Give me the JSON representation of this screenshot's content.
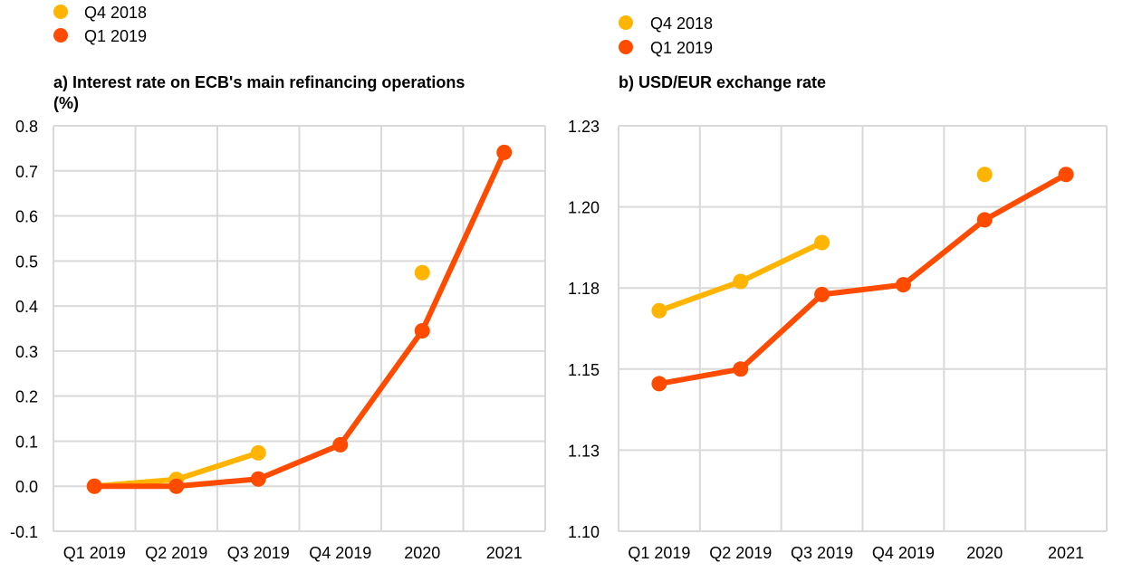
{
  "colors": {
    "series_q4_2018": "#FFB400",
    "series_q1_2019": "#FF4B00",
    "grid": "#D9D9D9"
  },
  "chart_data": [
    {
      "type": "line",
      "title": "a) Interest rate on ECB's main refinancing operations",
      "title_line2": "(%)",
      "xlabel": "",
      "ylabel": "",
      "categories": [
        "Q1 2019",
        "Q2 2019",
        "Q3 2019",
        "Q4 2019",
        "2020",
        "2021"
      ],
      "ylim": [
        -0.1,
        0.8
      ],
      "yticks": [
        -0.1,
        0.0,
        0.1,
        0.2,
        0.3,
        0.4,
        0.5,
        0.6,
        0.7,
        0.8
      ],
      "ytick_labels": [
        "-0.1",
        "0.0",
        "0.1",
        "0.2",
        "0.3",
        "0.4",
        "0.5",
        "0.6",
        "0.7",
        "0.8"
      ],
      "grid": true,
      "legend_position": "top-left",
      "series": [
        {
          "name": "Q4 2018",
          "values": [
            0.0,
            0.015,
            0.074,
            null,
            0.474,
            null
          ]
        },
        {
          "name": "Q1 2019",
          "values": [
            0.0,
            0.0,
            0.016,
            0.092,
            0.345,
            0.741
          ]
        }
      ]
    },
    {
      "type": "line",
      "title": "b) USD/EUR exchange rate",
      "xlabel": "",
      "ylabel": "",
      "categories": [
        "Q1 2019",
        "Q2 2019",
        "Q3 2019",
        "Q4 2019",
        "2020",
        "2021"
      ],
      "ylim": [
        1.1,
        1.225
      ],
      "yticks": [
        1.1,
        1.125,
        1.15,
        1.175,
        1.2,
        1.225
      ],
      "ytick_labels": [
        "1.10",
        "1.13",
        "1.15",
        "1.18",
        "1.20",
        "1.23"
      ],
      "grid": true,
      "legend_position": "top-left",
      "series": [
        {
          "name": "Q4 2018",
          "values": [
            1.168,
            1.177,
            1.189,
            null,
            1.21,
            null
          ]
        },
        {
          "name": "Q1 2019",
          "values": [
            1.1455,
            1.15,
            1.173,
            1.176,
            1.196,
            1.21
          ]
        }
      ]
    }
  ]
}
